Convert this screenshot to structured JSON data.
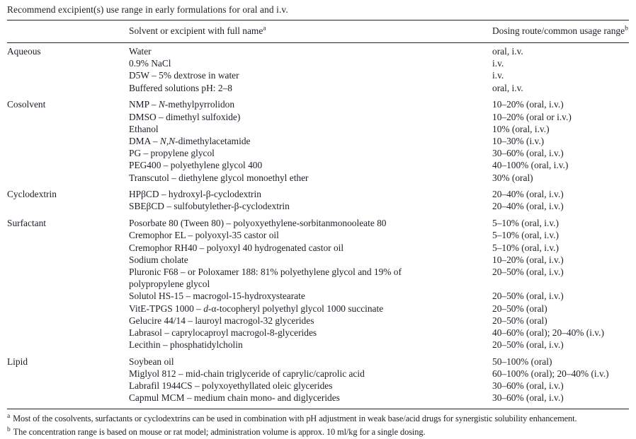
{
  "title": "Recommend excipient(s) use range in early formulations for oral and i.v.",
  "colors": {
    "text": "#1e1e28",
    "rule": "#20202a",
    "background": "#ffffff"
  },
  "table": {
    "headers": {
      "category": "",
      "solvent": "Solvent or excipient with full name",
      "solvent_sup": "a",
      "dosing": "Dosing route/common usage range",
      "dosing_sup": "b"
    },
    "sections": [
      {
        "category": "Aqueous",
        "rows": [
          {
            "name": "Water",
            "range": "oral, i.v."
          },
          {
            "name": "0.9% NaCl",
            "range": "i.v."
          },
          {
            "name": "D5W – 5% dextrose in water",
            "range": "i.v."
          },
          {
            "name": "Buffered solutions pH: 2–8",
            "range": "oral, i.v."
          }
        ]
      },
      {
        "category": "Cosolvent",
        "rows": [
          {
            "name": "NMP – *N*-methylpyrrolidon",
            "range": "10–20% (oral, i.v.)"
          },
          {
            "name": "DMSO – dimethyl sulfoxide)",
            "range": "10–20% (oral or i.v.)"
          },
          {
            "name": "Ethanol",
            "range": "10% (oral, i.v.)"
          },
          {
            "name": "DMA – *N,N*-dimethylacetamide",
            "range": "10–30% (i.v.)"
          },
          {
            "name": "PG – propylene glycol",
            "range": "30–60% (oral, i.v.)"
          },
          {
            "name": "PEG400 – polyethylene glycol 400",
            "range": "40–100% (oral, i.v.)"
          },
          {
            "name": "Transcutol – diethylene glycol monoethyl ether",
            "range": "30% (oral)"
          }
        ]
      },
      {
        "category": "Cyclodextrin",
        "rows": [
          {
            "name": "HPβCD – hydroxyl-β-cyclodextrin",
            "range": "20–40% (oral, i.v.)"
          },
          {
            "name": "SBEβCD – sulfobutylether-β-cyclodextrin",
            "range": "20–40% (oral, i.v.)"
          }
        ]
      },
      {
        "category": "Surfactant",
        "rows": [
          {
            "name": "Posorbate 80 (Tween 80) – polyoxyethylene-sorbitanmonooleate 80",
            "range": "5–10% (oral, i.v.)"
          },
          {
            "name": "Cremophor EL – polyoxyl-35 castor oil",
            "range": "5–10% (oral, i.v.)"
          },
          {
            "name": "Cremophor RH40 – polyoxyl 40 hydrogenated castor oil",
            "range": "5–10% (oral, i.v.)"
          },
          {
            "name": "Sodium cholate",
            "range": "10–20% (oral, i.v.)"
          },
          {
            "name": "Pluronic F68 – or Poloxamer 188: 81% polyethylene glycol and 19% of\npolypropylene glycol",
            "range": "20–50% (oral, i.v.)"
          },
          {
            "name": "Solutol HS-15 – macrogol-15-hydroxystearate",
            "range": "20–50% (oral, i.v.)"
          },
          {
            "name": "VitE-TPGS 1000 – *d*-α-tocopheryl polyethyl glycol 1000 succinate",
            "range": "20–50% (oral)"
          },
          {
            "name": "Gelucire 44/14 – lauroyl macrogol-32 glycerides",
            "range": "20–50% (oral)"
          },
          {
            "name": "Labrasol – caprylocaproyl macrogol-8-glycerides",
            "range": "40–60% (oral); 20–40% (i.v.)"
          },
          {
            "name": "Lecithin – phosphatidylcholin",
            "range": "20–50% (oral, i.v.)"
          }
        ]
      },
      {
        "category": "Lipid",
        "rows": [
          {
            "name": "Soybean oil",
            "range": "50–100% (oral)"
          },
          {
            "name": "Miglyol 812 – mid-chain triglyceride of caprylic/caprolic acid",
            "range": "60–100% (oral); 20–40% (i.v.)"
          },
          {
            "name": "Labrafil 1944CS – polyxoyethyllated oleic glycerides",
            "range": "30–60% (oral, i.v.)"
          },
          {
            "name": "Capmul MCM – medium chain mono- and diglycerides",
            "range": "30–60% (oral, i.v.)"
          }
        ]
      }
    ]
  },
  "footnotes": [
    {
      "marker": "a",
      "text": "Most of the cosolvents, surfactants or cyclodextrins can be used in combination with pH adjustment in weak base/acid drugs for synergistic solubility enhancement."
    },
    {
      "marker": "b",
      "text": "The concentration range is based on mouse or rat model; administration volume is approx. 10 ml/kg for a single dosing."
    }
  ]
}
